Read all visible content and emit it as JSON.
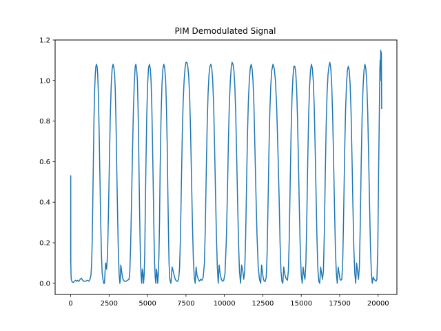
{
  "chart_data": {
    "type": "line",
    "title": "PIM Demodulated Signal",
    "xlabel": "",
    "ylabel": "",
    "xlim": [
      -1010,
      21220
    ],
    "ylim": [
      -0.055,
      1.2
    ],
    "grid": false,
    "legend": "none",
    "x_ticks": [
      0,
      2500,
      5000,
      7500,
      10000,
      12500,
      15000,
      17500,
      20000
    ],
    "x_tick_labels": [
      "0",
      "2500",
      "5000",
      "7500",
      "10000",
      "12500",
      "15000",
      "17500",
      "20000"
    ],
    "y_ticks": [
      0.0,
      0.2,
      0.4,
      0.6,
      0.8,
      1.0,
      1.2
    ],
    "y_tick_labels": [
      "0.0",
      "0.2",
      "0.4",
      "0.6",
      "0.8",
      "1.0",
      "1.2"
    ],
    "line_color": "#1f77b4",
    "series": [
      {
        "x": [
          0,
          5,
          10,
          25,
          40,
          60,
          80,
          120,
          180,
          250,
          320,
          400,
          450,
          500,
          560,
          620,
          700,
          780,
          860,
          940,
          1020,
          1100,
          1180,
          1260,
          1320,
          1360,
          1400,
          1440,
          1480,
          1520,
          1560,
          1600,
          1640,
          1680,
          1720,
          1760,
          1800,
          1850,
          1900,
          1950,
          2000,
          2050,
          2100,
          2150,
          2200,
          2240,
          2280,
          2340,
          2400,
          2460,
          2520,
          2580,
          2640,
          2700,
          2760,
          2820,
          2860,
          2900,
          2950,
          3000,
          3050,
          3100,
          3150,
          3200,
          3230,
          3260,
          3300,
          3350,
          3400,
          3450,
          3500,
          3600,
          3700,
          3800,
          3850,
          3900,
          3960,
          4020,
          4080,
          4140,
          4200,
          4240,
          4290,
          4340,
          4380,
          4420,
          4460,
          4500,
          4540,
          4580,
          4620,
          4660,
          4700,
          4740,
          4780,
          4820,
          4850,
          4900,
          4950,
          5000,
          5060,
          5120,
          5180,
          5230,
          5280,
          5330,
          5380,
          5420,
          5460,
          5500,
          5540,
          5580,
          5620,
          5660,
          5700,
          5740,
          5780,
          5820,
          5880,
          5940,
          6000,
          6060,
          6120,
          6180,
          6230,
          6280,
          6320,
          6360,
          6400,
          6450,
          6520,
          6600,
          6700,
          6800,
          6900,
          6960,
          7020,
          7080,
          7140,
          7200,
          7260,
          7320,
          7380,
          7440,
          7500,
          7560,
          7620,
          7680,
          7740,
          7800,
          7860,
          7920,
          7980,
          8040,
          8100,
          8160,
          8220,
          8300,
          8380,
          8460,
          8540,
          8620,
          8700,
          8760,
          8820,
          8880,
          8940,
          9000,
          9060,
          9120,
          9180,
          9240,
          9300,
          9360,
          9420,
          9480,
          9540,
          9600,
          9660,
          9720,
          9800,
          9880,
          9960,
          10040,
          10120,
          10200,
          10260,
          10320,
          10380,
          10440,
          10500,
          10560,
          10620,
          10680,
          10740,
          10800,
          10860,
          10920,
          10980,
          11050,
          11120,
          11200,
          11260,
          11320,
          11380,
          11440,
          11500,
          11560,
          11620,
          11680,
          11740,
          11800,
          11860,
          11920,
          11980,
          12050,
          12120,
          12200,
          12280,
          12360,
          12420,
          12480,
          12540,
          12600,
          12660,
          12720,
          12780,
          12840,
          12900,
          12960,
          13020,
          13080,
          13160,
          13240,
          13320,
          13400,
          13480,
          13560,
          13620,
          13680,
          13740,
          13800,
          13860,
          13920,
          13980,
          14040,
          14100,
          14160,
          14220,
          14280,
          14340,
          14400,
          14460,
          14520,
          14580,
          14640,
          14700,
          14760,
          14820,
          14880,
          14940,
          15000,
          15060,
          15120,
          15180,
          15240,
          15300,
          15360,
          15420,
          15480,
          15540,
          15600,
          15660,
          15720,
          15780,
          15840,
          15900,
          15960,
          16020,
          16080,
          16140,
          16200,
          16260,
          16320,
          16380,
          16440,
          16500,
          16560,
          16620,
          16680,
          16740,
          16800,
          16860,
          16920,
          16980,
          17040,
          17100,
          17160,
          17220,
          17280,
          17340,
          17400,
          17460,
          17520,
          17580,
          17640,
          17700,
          17760,
          17820,
          17880,
          17940,
          18000,
          18060,
          18120,
          18180,
          18240,
          18300,
          18360,
          18420,
          18480,
          18540,
          18600,
          18660,
          18720,
          18780,
          18840,
          18900,
          18960,
          19020,
          19080,
          19140,
          19200,
          19260,
          19320,
          19380,
          19440,
          19500,
          19560,
          19620,
          19680,
          19740,
          19800,
          19860,
          19920,
          19980,
          20030,
          20080,
          20110,
          20130,
          20150,
          20170,
          20190,
          20210,
          20230
        ],
        "values": [
          0.1,
          0.53,
          0.1,
          0.04,
          0.02,
          0.015,
          0.01,
          0.005,
          0.005,
          0.01,
          0.015,
          0.01,
          0.015,
          0.01,
          0.012,
          0.02,
          0.025,
          0.015,
          0.01,
          0.01,
          0.012,
          0.015,
          0.01,
          0.02,
          0.04,
          0.09,
          0.2,
          0.4,
          0.62,
          0.82,
          0.95,
          1.03,
          1.07,
          1.08,
          1.07,
          1.03,
          0.94,
          0.76,
          0.54,
          0.32,
          0.15,
          0.05,
          0.02,
          0.0,
          0.0,
          0.06,
          0.1,
          0.07,
          0.14,
          0.35,
          0.6,
          0.83,
          0.98,
          1.06,
          1.08,
          1.06,
          1.03,
          0.96,
          0.79,
          0.56,
          0.35,
          0.16,
          0.05,
          0.0,
          0.02,
          0.09,
          0.07,
          0.04,
          0.02,
          0.015,
          0.01,
          0.01,
          0.015,
          0.02,
          0.06,
          0.18,
          0.4,
          0.64,
          0.85,
          0.99,
          1.07,
          1.08,
          1.06,
          1.0,
          0.88,
          0.7,
          0.48,
          0.28,
          0.12,
          0.04,
          0.0,
          0.07,
          0.05,
          0.0,
          0.04,
          0.15,
          0.33,
          0.6,
          0.82,
          0.97,
          1.06,
          1.08,
          1.06,
          1.0,
          0.87,
          0.67,
          0.44,
          0.24,
          0.1,
          0.03,
          0.0,
          0.07,
          0.05,
          0.0,
          0.04,
          0.13,
          0.3,
          0.56,
          0.82,
          0.98,
          1.06,
          1.08,
          1.06,
          1.0,
          0.87,
          0.68,
          0.46,
          0.26,
          0.1,
          0.02,
          0.0,
          0.08,
          0.05,
          0.02,
          0.01,
          0.01,
          0.02,
          0.07,
          0.22,
          0.48,
          0.73,
          0.9,
          1.0,
          1.06,
          1.09,
          1.09,
          1.07,
          1.02,
          0.92,
          0.75,
          0.52,
          0.3,
          0.12,
          0.03,
          0.0,
          0.08,
          0.04,
          0.02,
          0.01,
          0.02,
          0.015,
          0.03,
          0.1,
          0.28,
          0.55,
          0.78,
          0.94,
          1.03,
          1.07,
          1.08,
          1.06,
          1.0,
          0.88,
          0.68,
          0.45,
          0.24,
          0.08,
          0.0,
          0.09,
          0.05,
          0.02,
          0.01,
          0.015,
          0.05,
          0.2,
          0.45,
          0.7,
          0.88,
          0.99,
          1.06,
          1.09,
          1.08,
          1.05,
          0.97,
          0.83,
          0.62,
          0.4,
          0.2,
          0.06,
          0.0,
          0.09,
          0.06,
          0.02,
          0.06,
          0.22,
          0.48,
          0.73,
          0.9,
          1.0,
          1.06,
          1.08,
          1.06,
          1.0,
          0.88,
          0.68,
          0.45,
          0.24,
          0.08,
          0.02,
          0.0,
          0.09,
          0.05,
          0.02,
          0.01,
          0.01,
          0.03,
          0.15,
          0.4,
          0.66,
          0.86,
          0.98,
          1.05,
          1.08,
          1.06,
          1.0,
          0.87,
          0.66,
          0.42,
          0.2,
          0.06,
          0.01,
          0.0,
          0.08,
          0.05,
          0.03,
          0.02,
          0.015,
          0.06,
          0.22,
          0.5,
          0.75,
          0.92,
          1.02,
          1.07,
          1.07,
          1.04,
          0.96,
          0.8,
          0.58,
          0.35,
          0.15,
          0.04,
          0.0,
          0.08,
          0.04,
          0.02,
          0.1,
          0.32,
          0.6,
          0.83,
          0.97,
          1.05,
          1.08,
          1.06,
          1.0,
          0.88,
          0.68,
          0.45,
          0.22,
          0.07,
          0.01,
          0.0,
          0.08,
          0.05,
          0.02,
          0.06,
          0.25,
          0.53,
          0.78,
          0.94,
          1.03,
          1.07,
          1.09,
          1.06,
          0.98,
          0.83,
          0.62,
          0.38,
          0.17,
          0.05,
          0.0,
          0.08,
          0.05,
          0.02,
          0.015,
          0.02,
          0.12,
          0.36,
          0.64,
          0.85,
          0.98,
          1.05,
          1.07,
          1.05,
          0.98,
          0.84,
          0.62,
          0.38,
          0.17,
          0.05,
          0.0,
          0.1,
          0.06,
          0.02,
          0.08,
          0.3,
          0.6,
          0.83,
          0.97,
          1.05,
          1.08,
          1.06,
          0.99,
          0.85,
          0.63,
          0.4,
          0.18,
          0.05,
          0.0,
          0.03,
          0.02,
          0.015,
          0.01,
          0.02,
          0.18,
          0.55,
          0.85,
          1.05,
          1.1,
          1.05,
          1.15,
          1.0,
          1.14,
          0.86
        ]
      }
    ]
  }
}
